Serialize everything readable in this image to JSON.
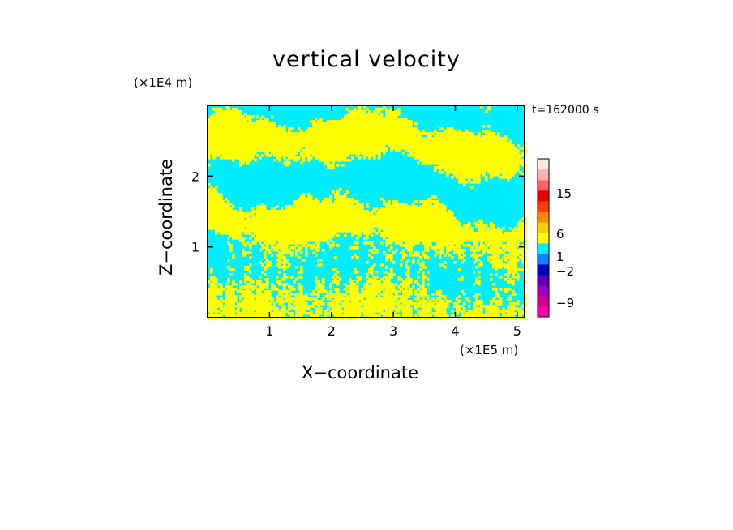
{
  "chart_data": {
    "type": "heatmap",
    "title": "vertical velocity",
    "xlabel": "X−coordinate",
    "ylabel": "Z−coordinate",
    "x_unit": "(×1E5 m)",
    "z_unit": "(×1E4 m)",
    "time_label": "t=162000 s",
    "xlim": [
      0,
      5.12
    ],
    "ylim": [
      0,
      3.0
    ],
    "x_ticks": [
      1,
      2,
      3,
      4,
      5
    ],
    "y_ticks": [
      1,
      2
    ],
    "x_tick_labels": [
      "1",
      "2",
      "3",
      "4",
      "5"
    ],
    "y_tick_labels": [
      "1",
      "2"
    ],
    "field_colors": {
      "positive": "#ffff00",
      "negative": "#00eeff"
    },
    "colorbar": {
      "levels": [
        -9,
        -2,
        1,
        6,
        15
      ],
      "labels": [
        "−9",
        "−2",
        "1",
        "6",
        "15"
      ],
      "colors_bottom_to_top": [
        "#ff00aa",
        "#d20090",
        "#9a00b8",
        "#5a00b0",
        "#0000c0",
        "#0088ff",
        "#00eeff",
        "#ffff00",
        "#ffd000",
        "#ff8800",
        "#ff4000",
        "#e80000",
        "#ff6060",
        "#ffb0b0",
        "#ffe8e0"
      ]
    }
  }
}
